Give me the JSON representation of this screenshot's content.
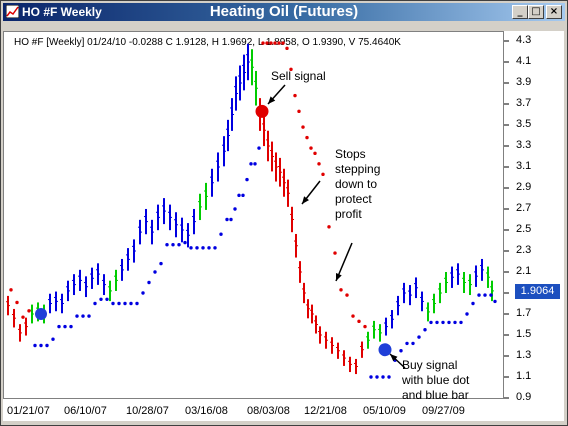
{
  "window": {
    "title": "HO #F Weekly",
    "chart_title": "Heating Oil (Futures)",
    "buttons": [
      "_",
      "□",
      "×"
    ]
  },
  "info_line": "HO #F [Weekly] 01/24/10 -0.0288 C 1.9128, H 1.9692, L 1.8958, O 1.9390, V 75.4640K",
  "price_badge": "1.9064",
  "colors": {
    "up": "#0000e0",
    "down": "#e00000",
    "neutral": "#00cc00",
    "title_bar": "#0a246a"
  },
  "chart_data": {
    "type": "bar",
    "subtype": "OHLC price bars with stop dots",
    "title": "Heating Oil (Futures)",
    "x_ticks": [
      "01/21/07",
      "06/10/07",
      "10/28/07",
      "03/16/08",
      "08/03/08",
      "12/21/08",
      "05/10/09",
      "09/27/09"
    ],
    "y_ticks": [
      "4.3",
      "4.1",
      "3.9",
      "3.7",
      "3.5",
      "3.3",
      "3.1",
      "2.9",
      "2.7",
      "2.5",
      "2.3",
      "2.1",
      "1.9",
      "1.7",
      "1.5",
      "1.3",
      "1.1",
      "0.9"
    ],
    "ylim": [
      0.9,
      4.3
    ],
    "last_close": 1.9128,
    "annotations": [
      {
        "text": "Sell signal"
      },
      {
        "text": "Stops stepping down to protect profit"
      },
      {
        "text": "Buy signal with blue dot and blue bar"
      }
    ]
  },
  "annotation_lines": {
    "sell": "Sell signal",
    "stops": [
      "Stops",
      "stepping",
      "down to",
      "protect",
      "profit"
    ],
    "buy": [
      "Buy signal",
      "with blue dot",
      "and blue bar"
    ]
  }
}
